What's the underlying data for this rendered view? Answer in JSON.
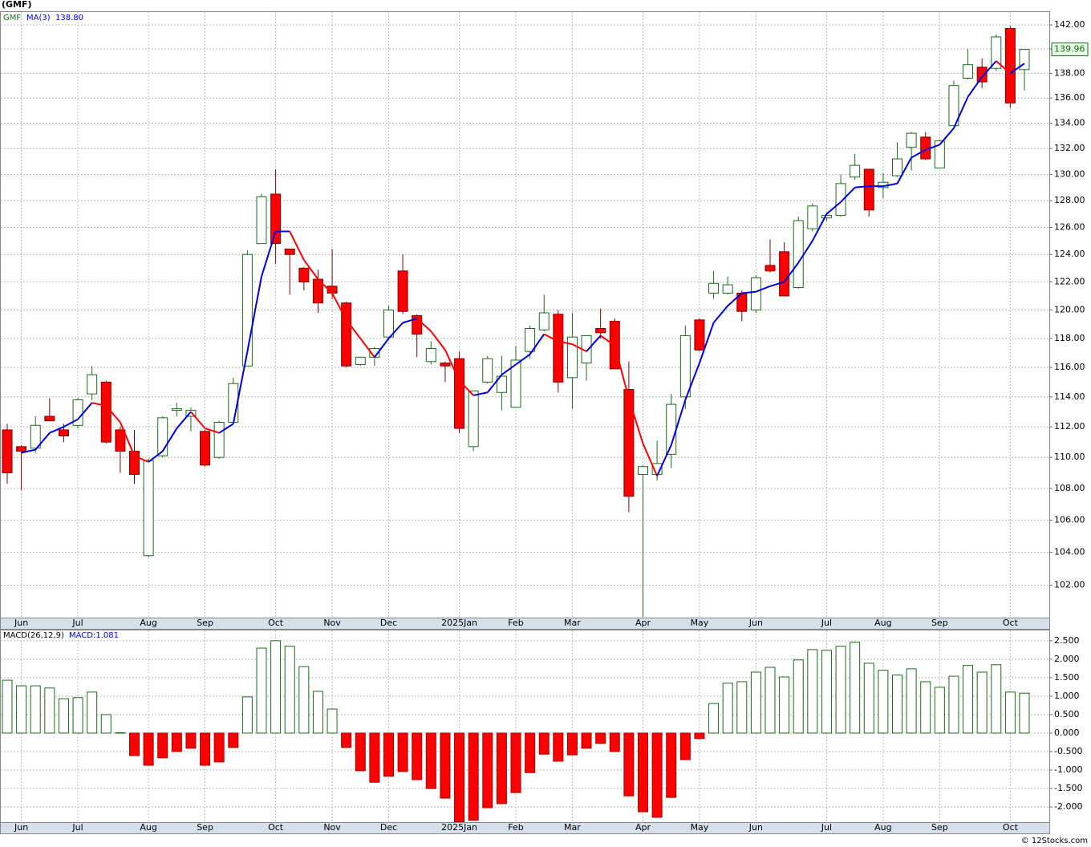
{
  "chart_data": [
    {
      "type": "candlestick",
      "title": "(GMF)",
      "symbol": "GMF",
      "categories": [
        null,
        "Jun",
        null,
        null,
        null,
        "Jul",
        null,
        null,
        null,
        null,
        "Aug",
        null,
        null,
        null,
        "Sep",
        null,
        null,
        null,
        null,
        "Oct",
        null,
        null,
        null,
        "Nov",
        null,
        null,
        null,
        "Dec",
        null,
        null,
        null,
        null,
        "2025Jan",
        null,
        null,
        null,
        "Feb",
        null,
        null,
        null,
        "Mar",
        null,
        null,
        null,
        null,
        "Apr",
        null,
        null,
        null,
        "May",
        null,
        null,
        null,
        "Jun",
        null,
        null,
        null,
        null,
        "Jul",
        null,
        null,
        null,
        "Aug",
        null,
        null,
        null,
        "Sep",
        null,
        null,
        null,
        null,
        "Oct",
        null
      ],
      "open": [
        111.8,
        110.7,
        110.6,
        112.7,
        111.8,
        112.1,
        114.2,
        115.0,
        111.8,
        110.4,
        103.8,
        110.1,
        113.1,
        112.7,
        111.7,
        110.0,
        112.3,
        116.1,
        124.8,
        128.5,
        124.4,
        123.0,
        122.2,
        121.7,
        120.5,
        116.2,
        116.7,
        118.1,
        122.8,
        119.6,
        116.4,
        116.3,
        116.6,
        110.7,
        115.0,
        114.3,
        113.3,
        117.1,
        118.6,
        119.7,
        115.3,
        116.3,
        118.7,
        119.2,
        114.5,
        108.9,
        108.9,
        110.2,
        114.0,
        119.3,
        121.2,
        121.2,
        121.2,
        120.0,
        123.2,
        124.2,
        121.6,
        125.9,
        126.7,
        126.9,
        129.8,
        130.4,
        129.0,
        129.9,
        132.1,
        132.9,
        130.5,
        133.8,
        137.6,
        138.5,
        138.4,
        141.7,
        138.3
      ],
      "high": [
        112.2,
        110.8,
        112.7,
        113.9,
        112.2,
        113.9,
        116.1,
        115.1,
        112.0,
        111.8,
        109.9,
        112.7,
        113.6,
        113.3,
        111.8,
        112.4,
        115.3,
        124.3,
        128.5,
        130.4,
        124.4,
        123.1,
        122.9,
        124.4,
        120.6,
        116.7,
        117.4,
        120.3,
        124.0,
        119.7,
        117.8,
        116.4,
        117.1,
        114.4,
        116.8,
        116.8,
        117.5,
        118.9,
        121.1,
        120.0,
        119.8,
        118.2,
        120.1,
        119.4,
        116.4,
        109.5,
        111.1,
        114.2,
        118.9,
        119.4,
        122.8,
        122.4,
        121.4,
        122.5,
        125.1,
        124.9,
        126.8,
        127.8,
        127.1,
        130.0,
        131.6,
        130.4,
        130.1,
        132.5,
        133.3,
        133.3,
        132.7,
        137.4,
        140.0,
        139.2,
        141.2,
        141.9,
        140.0
      ],
      "low": [
        108.3,
        107.9,
        110.3,
        112.4,
        111.0,
        111.9,
        113.8,
        110.9,
        109.0,
        108.3,
        103.7,
        110.0,
        112.7,
        111.7,
        109.4,
        109.9,
        112.2,
        116.1,
        124.8,
        123.3,
        121.1,
        121.4,
        119.8,
        120.8,
        116.0,
        116.1,
        116.1,
        117.9,
        119.7,
        116.7,
        116.2,
        115.0,
        111.6,
        110.4,
        114.9,
        113.1,
        113.3,
        116.6,
        118.5,
        114.3,
        113.2,
        115.1,
        118.0,
        115.9,
        106.5,
        100.1,
        108.5,
        109.3,
        113.2,
        117.1,
        120.8,
        121.1,
        119.2,
        119.8,
        122.7,
        121.0,
        121.5,
        125.7,
        126.5,
        126.8,
        129.6,
        126.8,
        128.2,
        129.8,
        130.3,
        131.1,
        130.5,
        133.8,
        137.5,
        136.8,
        138.2,
        135.2,
        136.6
      ],
      "close": [
        109.0,
        110.4,
        112.1,
        112.4,
        111.4,
        113.8,
        115.5,
        111.0,
        110.4,
        108.9,
        109.8,
        112.6,
        113.2,
        113.1,
        109.5,
        112.3,
        114.9,
        124.0,
        128.3,
        124.8,
        124.0,
        122.0,
        120.5,
        121.2,
        116.1,
        116.7,
        117.3,
        120.0,
        119.9,
        118.3,
        117.3,
        116.1,
        111.9,
        114.4,
        116.6,
        115.4,
        116.5,
        118.7,
        119.8,
        115.0,
        118.1,
        118.2,
        118.4,
        115.9,
        107.5,
        109.4,
        109.6,
        113.5,
        118.2,
        117.2,
        121.9,
        121.8,
        119.9,
        122.3,
        122.8,
        121.0,
        126.5,
        127.6,
        126.9,
        129.3,
        130.7,
        127.3,
        129.4,
        131.2,
        133.2,
        131.2,
        132.6,
        137.0,
        138.7,
        137.3,
        141.0,
        135.6,
        139.96
      ],
      "up_color": "#1a6b1a",
      "down_color": "#ff0000",
      "ma": {
        "name": "MA(3)",
        "legend_value": "138.80",
        "up_color": "#0000dd",
        "down_color": "#ff0000",
        "values": [
          null,
          110.3,
          110.5,
          111.6,
          112.0,
          112.5,
          113.6,
          113.4,
          112.3,
          110.1,
          109.7,
          110.4,
          111.9,
          113.0,
          111.9,
          111.6,
          112.2,
          117.1,
          122.4,
          125.7,
          125.7,
          123.6,
          122.2,
          121.2,
          119.3,
          118.0,
          116.7,
          118.0,
          119.1,
          119.4,
          118.5,
          117.2,
          115.1,
          114.1,
          114.3,
          115.5,
          116.2,
          116.9,
          118.3,
          117.8,
          117.6,
          117.1,
          118.2,
          117.5,
          113.9,
          110.9,
          108.8,
          110.8,
          113.8,
          116.3,
          119.1,
          120.3,
          121.2,
          121.3,
          121.7,
          122.0,
          123.4,
          125.0,
          127.0,
          127.9,
          129.0,
          129.1,
          129.1,
          129.3,
          131.3,
          131.9,
          132.3,
          133.6,
          136.1,
          137.7,
          139.0,
          138.0,
          138.8
        ]
      },
      "log_scale": true,
      "grid": true,
      "ylim": [
        100.07,
        143.15
      ],
      "yticks": [
        {
          "value": 102,
          "label": "102.00"
        },
        {
          "value": 104,
          "label": "104.00"
        },
        {
          "value": 106,
          "label": "106.00"
        },
        {
          "value": 108,
          "label": "108.00"
        },
        {
          "value": 110,
          "label": "110.00"
        },
        {
          "value": 112,
          "label": "112.00"
        },
        {
          "value": 114,
          "label": "114.00"
        },
        {
          "value": 116,
          "label": "116.00"
        },
        {
          "value": 118,
          "label": "118.00"
        },
        {
          "value": 120,
          "label": "120.00"
        },
        {
          "value": 122,
          "label": "122.00"
        },
        {
          "value": 124,
          "label": "124.00"
        },
        {
          "value": 126,
          "label": "126.00"
        },
        {
          "value": 128,
          "label": "128.00"
        },
        {
          "value": 130,
          "label": "130.00"
        },
        {
          "value": 132,
          "label": "132.00"
        },
        {
          "value": 134,
          "label": "134.00"
        },
        {
          "value": 136,
          "label": "136.00"
        },
        {
          "value": 138,
          "label": "138.00"
        },
        {
          "value": 140,
          "label": "140.00"
        },
        {
          "value": 142,
          "label": "142.00"
        }
      ]
    },
    {
      "type": "bar",
      "name": "MACD(26,12,9)",
      "legend_value": "MACD:1.081",
      "categories": [
        null,
        "Jun",
        null,
        null,
        null,
        "Jul",
        null,
        null,
        null,
        null,
        "Aug",
        null,
        null,
        null,
        "Sep",
        null,
        null,
        null,
        null,
        "Oct",
        null,
        null,
        null,
        "Nov",
        null,
        null,
        null,
        "Dec",
        null,
        null,
        null,
        null,
        "2025Jan",
        null,
        null,
        null,
        "Feb",
        null,
        null,
        null,
        "Mar",
        null,
        null,
        null,
        null,
        "Apr",
        null,
        null,
        null,
        "May",
        null,
        null,
        null,
        "Jun",
        null,
        null,
        null,
        null,
        "Jul",
        null,
        null,
        null,
        "Aug",
        null,
        null,
        null,
        "Sep",
        null,
        null,
        null,
        null,
        "Oct",
        null
      ],
      "values": [
        1.43,
        1.28,
        1.28,
        1.22,
        0.93,
        0.96,
        1.11,
        0.5,
        0.01,
        -0.61,
        -0.87,
        -0.67,
        -0.5,
        -0.41,
        -0.87,
        -0.78,
        -0.39,
        0.98,
        2.3,
        2.5,
        2.35,
        1.8,
        1.13,
        0.65,
        -0.39,
        -1.02,
        -1.33,
        -1.17,
        -1.04,
        -1.26,
        -1.5,
        -1.76,
        -2.4,
        -2.36,
        -2.02,
        -1.91,
        -1.61,
        -1.07,
        -0.57,
        -0.76,
        -0.59,
        -0.41,
        -0.28,
        -0.5,
        -1.7,
        -2.13,
        -2.28,
        -1.74,
        -0.72,
        -0.15,
        0.8,
        1.35,
        1.39,
        1.65,
        1.78,
        1.52,
        1.98,
        2.26,
        2.24,
        2.35,
        2.46,
        1.89,
        1.7,
        1.57,
        1.74,
        1.39,
        1.24,
        1.54,
        1.83,
        1.65,
        1.85,
        1.11,
        1.081
      ],
      "up_color": "#1a6b1a",
      "down_color": "#ff0000",
      "grid": true,
      "ylim": [
        -2.41,
        2.8
      ],
      "yticks": [
        {
          "value": -2,
          "label": "-2.000"
        },
        {
          "value": -1.5,
          "label": "-1.500"
        },
        {
          "value": -1,
          "label": "-1.000"
        },
        {
          "value": -0.5,
          "label": "-0.500"
        },
        {
          "value": 0,
          "label": "0.000"
        },
        {
          "value": 0.5,
          "label": "0.500"
        },
        {
          "value": 1,
          "label": "1.000"
        },
        {
          "value": 1.5,
          "label": "1.500"
        },
        {
          "value": 2,
          "label": "2.000"
        },
        {
          "value": 2.5,
          "label": "2.500"
        }
      ]
    }
  ],
  "footer": "© 12Stocks.com"
}
